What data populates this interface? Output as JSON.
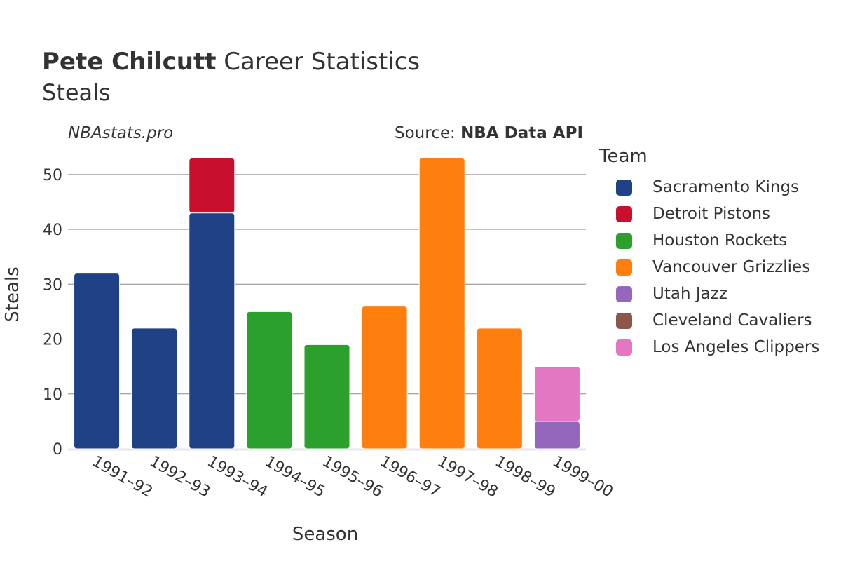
{
  "header": {
    "title_bold": "Pete Chilcutt",
    "title_rest": "Career Statistics",
    "subtitle": "Steals",
    "brand": "NBAstats.pro",
    "source_prefix": "Source:",
    "source_name": "NBA Data API"
  },
  "legend": {
    "title": "Team",
    "items": [
      {
        "label": "Sacramento Kings",
        "color": "#1f4287"
      },
      {
        "label": "Detroit Pistons",
        "color": "#c8102e"
      },
      {
        "label": "Houston Rockets",
        "color": "#2ca02c"
      },
      {
        "label": "Vancouver Grizzlies",
        "color": "#ff7f0e"
      },
      {
        "label": "Utah Jazz",
        "color": "#9467bd"
      },
      {
        "label": "Cleveland Cavaliers",
        "color": "#8c564b"
      },
      {
        "label": "Los Angeles Clippers",
        "color": "#e377c2"
      }
    ]
  },
  "chart_data": {
    "type": "bar",
    "stacked": true,
    "xlabel": "Season",
    "ylabel": "Steals",
    "ylim": [
      0,
      55
    ],
    "yticks": [
      0,
      10,
      20,
      30,
      40,
      50
    ],
    "grid": true,
    "legend_placement": "right",
    "categories": [
      "1991–92",
      "1992–93",
      "1993–94",
      "1994–95",
      "1995–96",
      "1996–97",
      "1997–98",
      "1998–99",
      "1999–00"
    ],
    "series": [
      {
        "name": "Sacramento Kings",
        "color": "#1f4287",
        "values": [
          32,
          22,
          43,
          0,
          0,
          0,
          0,
          0,
          0
        ]
      },
      {
        "name": "Detroit Pistons",
        "color": "#c8102e",
        "values": [
          0,
          0,
          10,
          0,
          0,
          0,
          0,
          0,
          0
        ]
      },
      {
        "name": "Houston Rockets",
        "color": "#2ca02c",
        "values": [
          0,
          0,
          0,
          25,
          19,
          0,
          0,
          0,
          0
        ]
      },
      {
        "name": "Vancouver Grizzlies",
        "color": "#ff7f0e",
        "values": [
          0,
          0,
          0,
          0,
          0,
          26,
          53,
          22,
          0
        ]
      },
      {
        "name": "Utah Jazz",
        "color": "#9467bd",
        "values": [
          0,
          0,
          0,
          0,
          0,
          0,
          0,
          0,
          5
        ]
      },
      {
        "name": "Cleveland Cavaliers",
        "color": "#8c564b",
        "values": [
          0,
          0,
          0,
          0,
          0,
          0,
          0,
          0,
          0
        ]
      },
      {
        "name": "Los Angeles Clippers",
        "color": "#e377c2",
        "values": [
          0,
          0,
          0,
          0,
          0,
          0,
          0,
          0,
          10
        ]
      }
    ]
  }
}
